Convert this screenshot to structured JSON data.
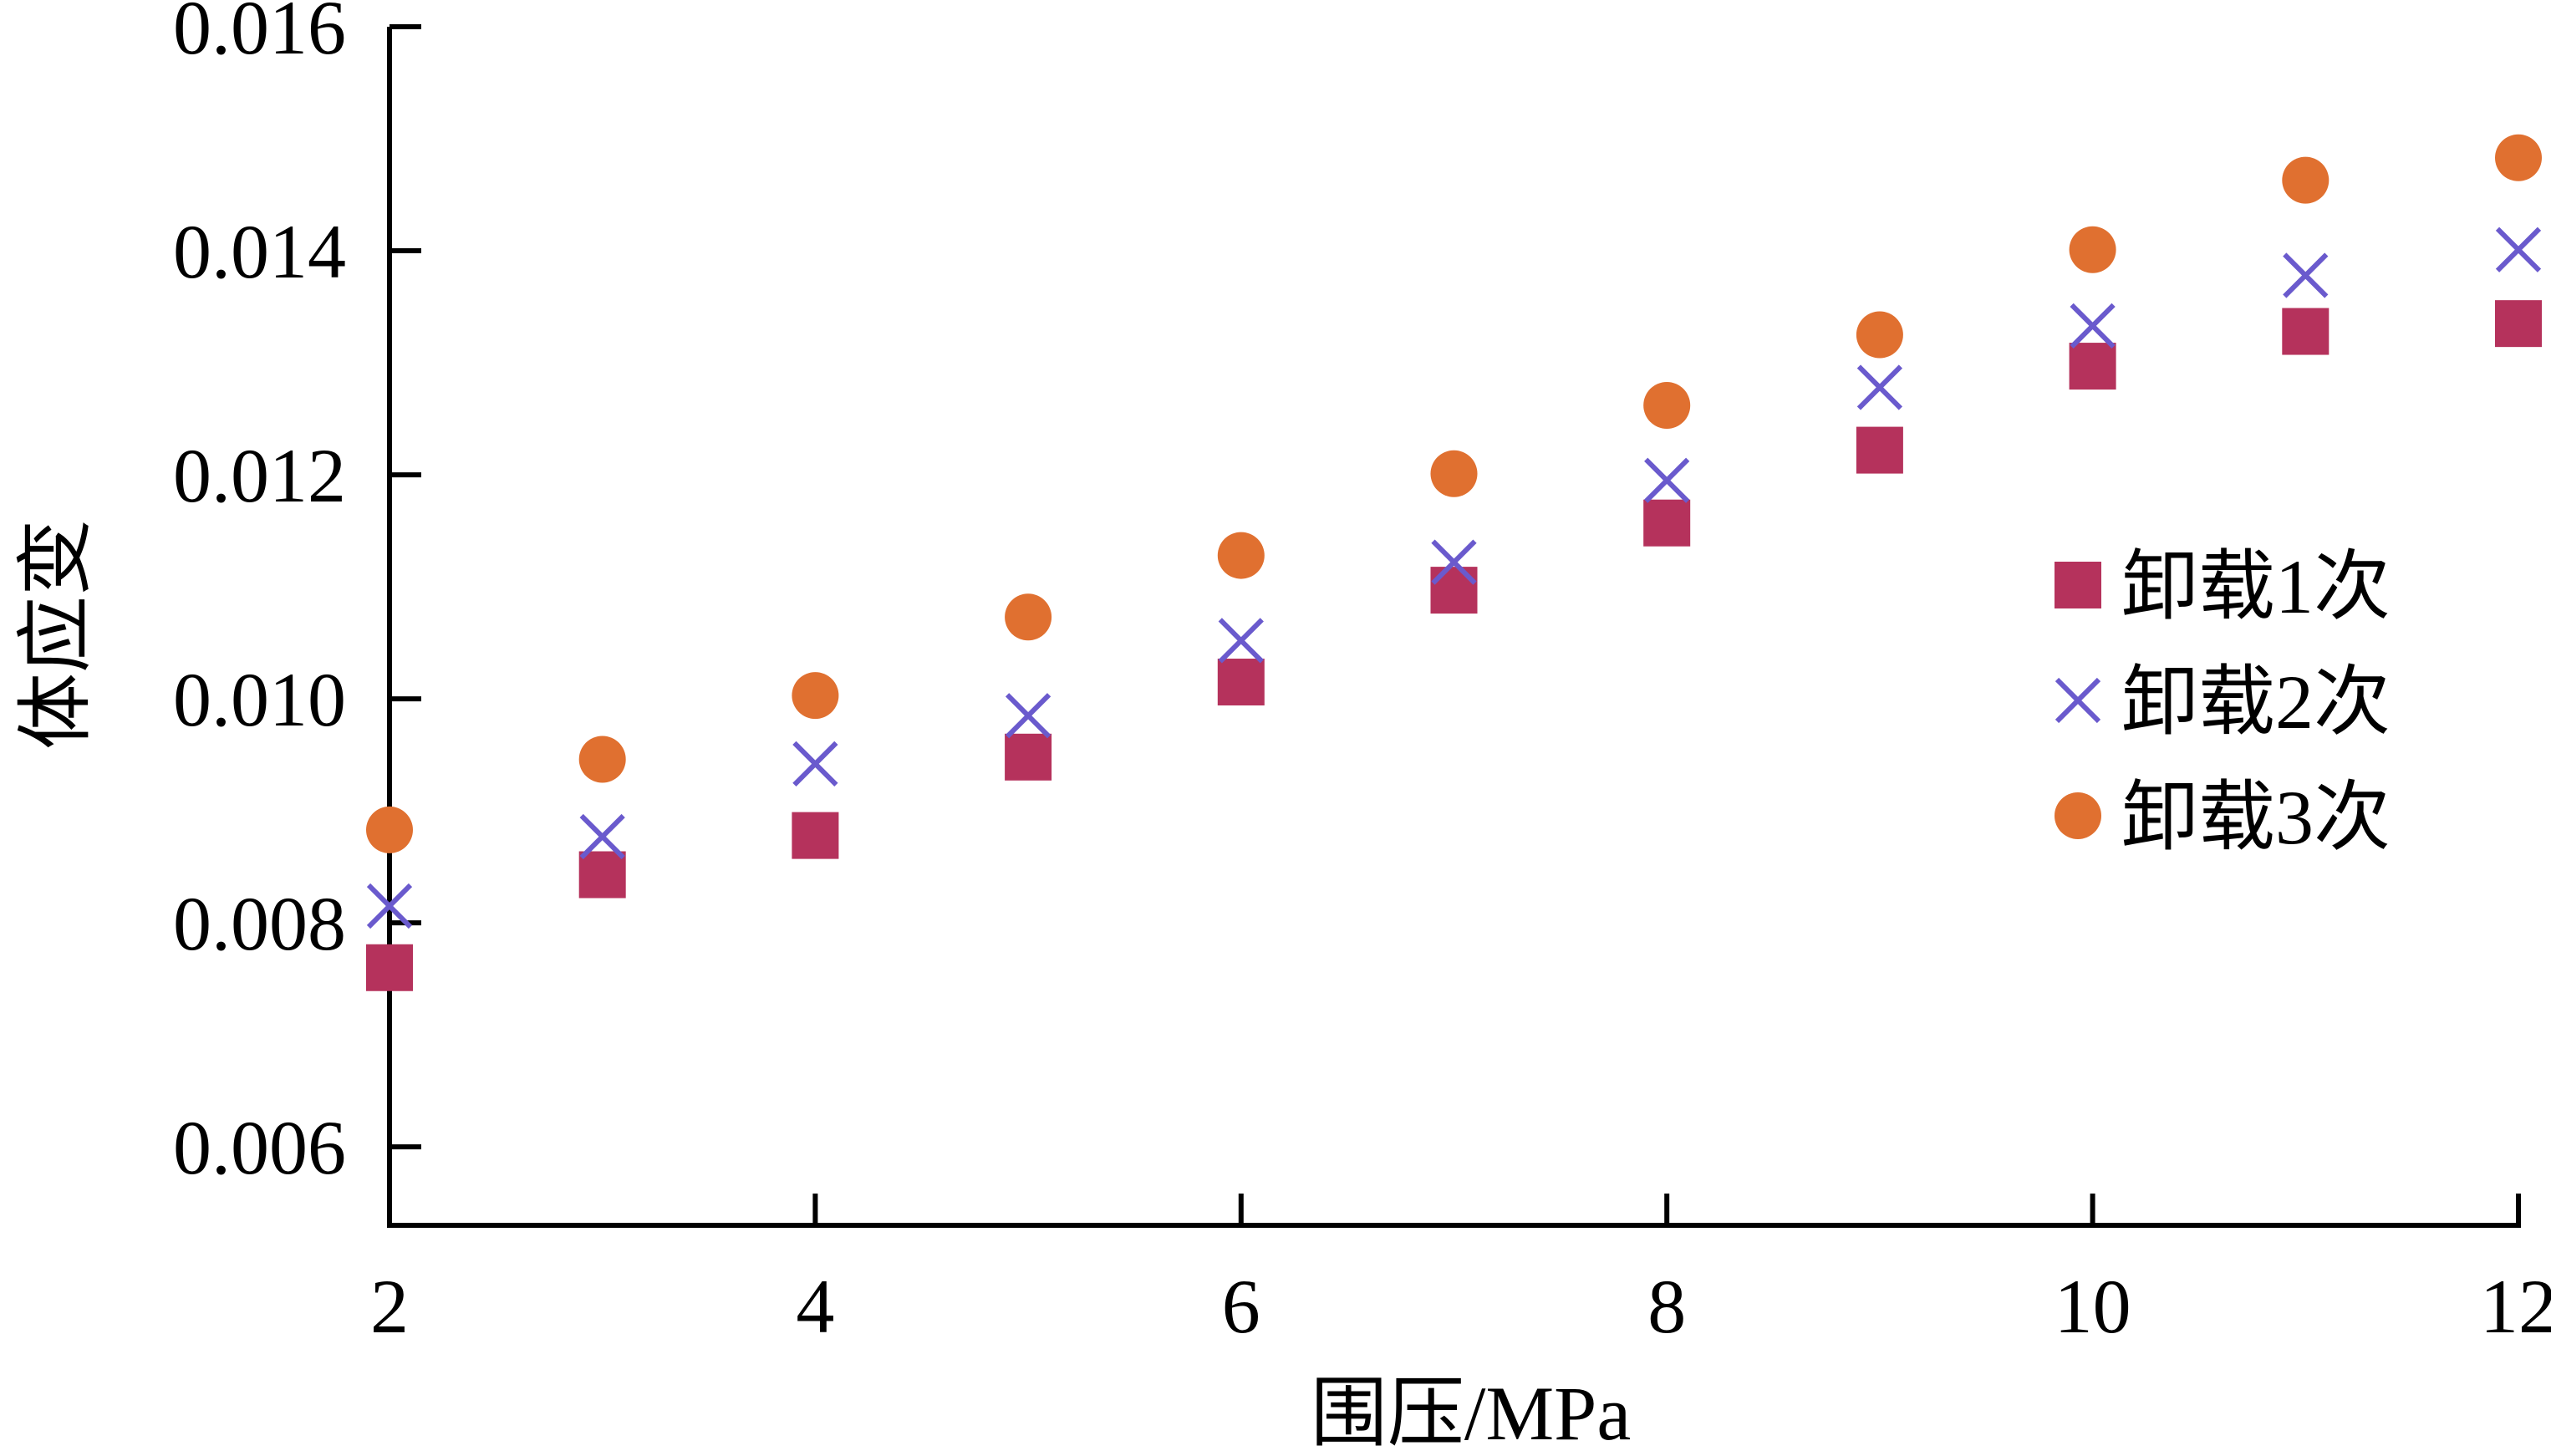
{
  "chart_data": {
    "type": "scatter",
    "title": "",
    "xlabel": "围压/MPa",
    "ylabel": "体应变",
    "xlim": [
      2,
      12
    ],
    "ylim": [
      0.0053,
      0.016
    ],
    "xticks": [
      2,
      4,
      6,
      8,
      10,
      12
    ],
    "xtick_labels": [
      "2",
      "4",
      "6",
      "8",
      "10",
      "12"
    ],
    "yticks": [
      0.006,
      0.008,
      0.01,
      0.012,
      0.014,
      0.016
    ],
    "ytick_labels": [
      "0.006",
      "0.008",
      "0.010",
      "0.012",
      "0.014",
      "0.016"
    ],
    "grid": false,
    "legend_position": "right",
    "x": [
      2,
      3,
      4,
      5,
      6,
      7,
      8,
      9,
      10,
      11,
      12
    ],
    "series": [
      {
        "name": "卸载1次",
        "marker": "square",
        "color": "#b5325c",
        "values": [
          0.0076,
          0.00843,
          0.00878,
          0.00948,
          0.01015,
          0.01097,
          0.01157,
          0.01222,
          0.01297,
          0.01328,
          0.01335
        ]
      },
      {
        "name": "卸载2次",
        "marker": "cross",
        "color": "#6a5acd",
        "values": [
          0.00815,
          0.00877,
          0.00942,
          0.00985,
          0.01052,
          0.01122,
          0.01195,
          0.01278,
          0.01333,
          0.01378,
          0.01401
        ]
      },
      {
        "name": "卸载3次",
        "marker": "circle",
        "color": "#e07030",
        "values": [
          0.00883,
          0.00946,
          0.01003,
          0.01073,
          0.01128,
          0.01201,
          0.01262,
          0.01325,
          0.01401,
          0.01463,
          0.01483
        ]
      }
    ]
  }
}
